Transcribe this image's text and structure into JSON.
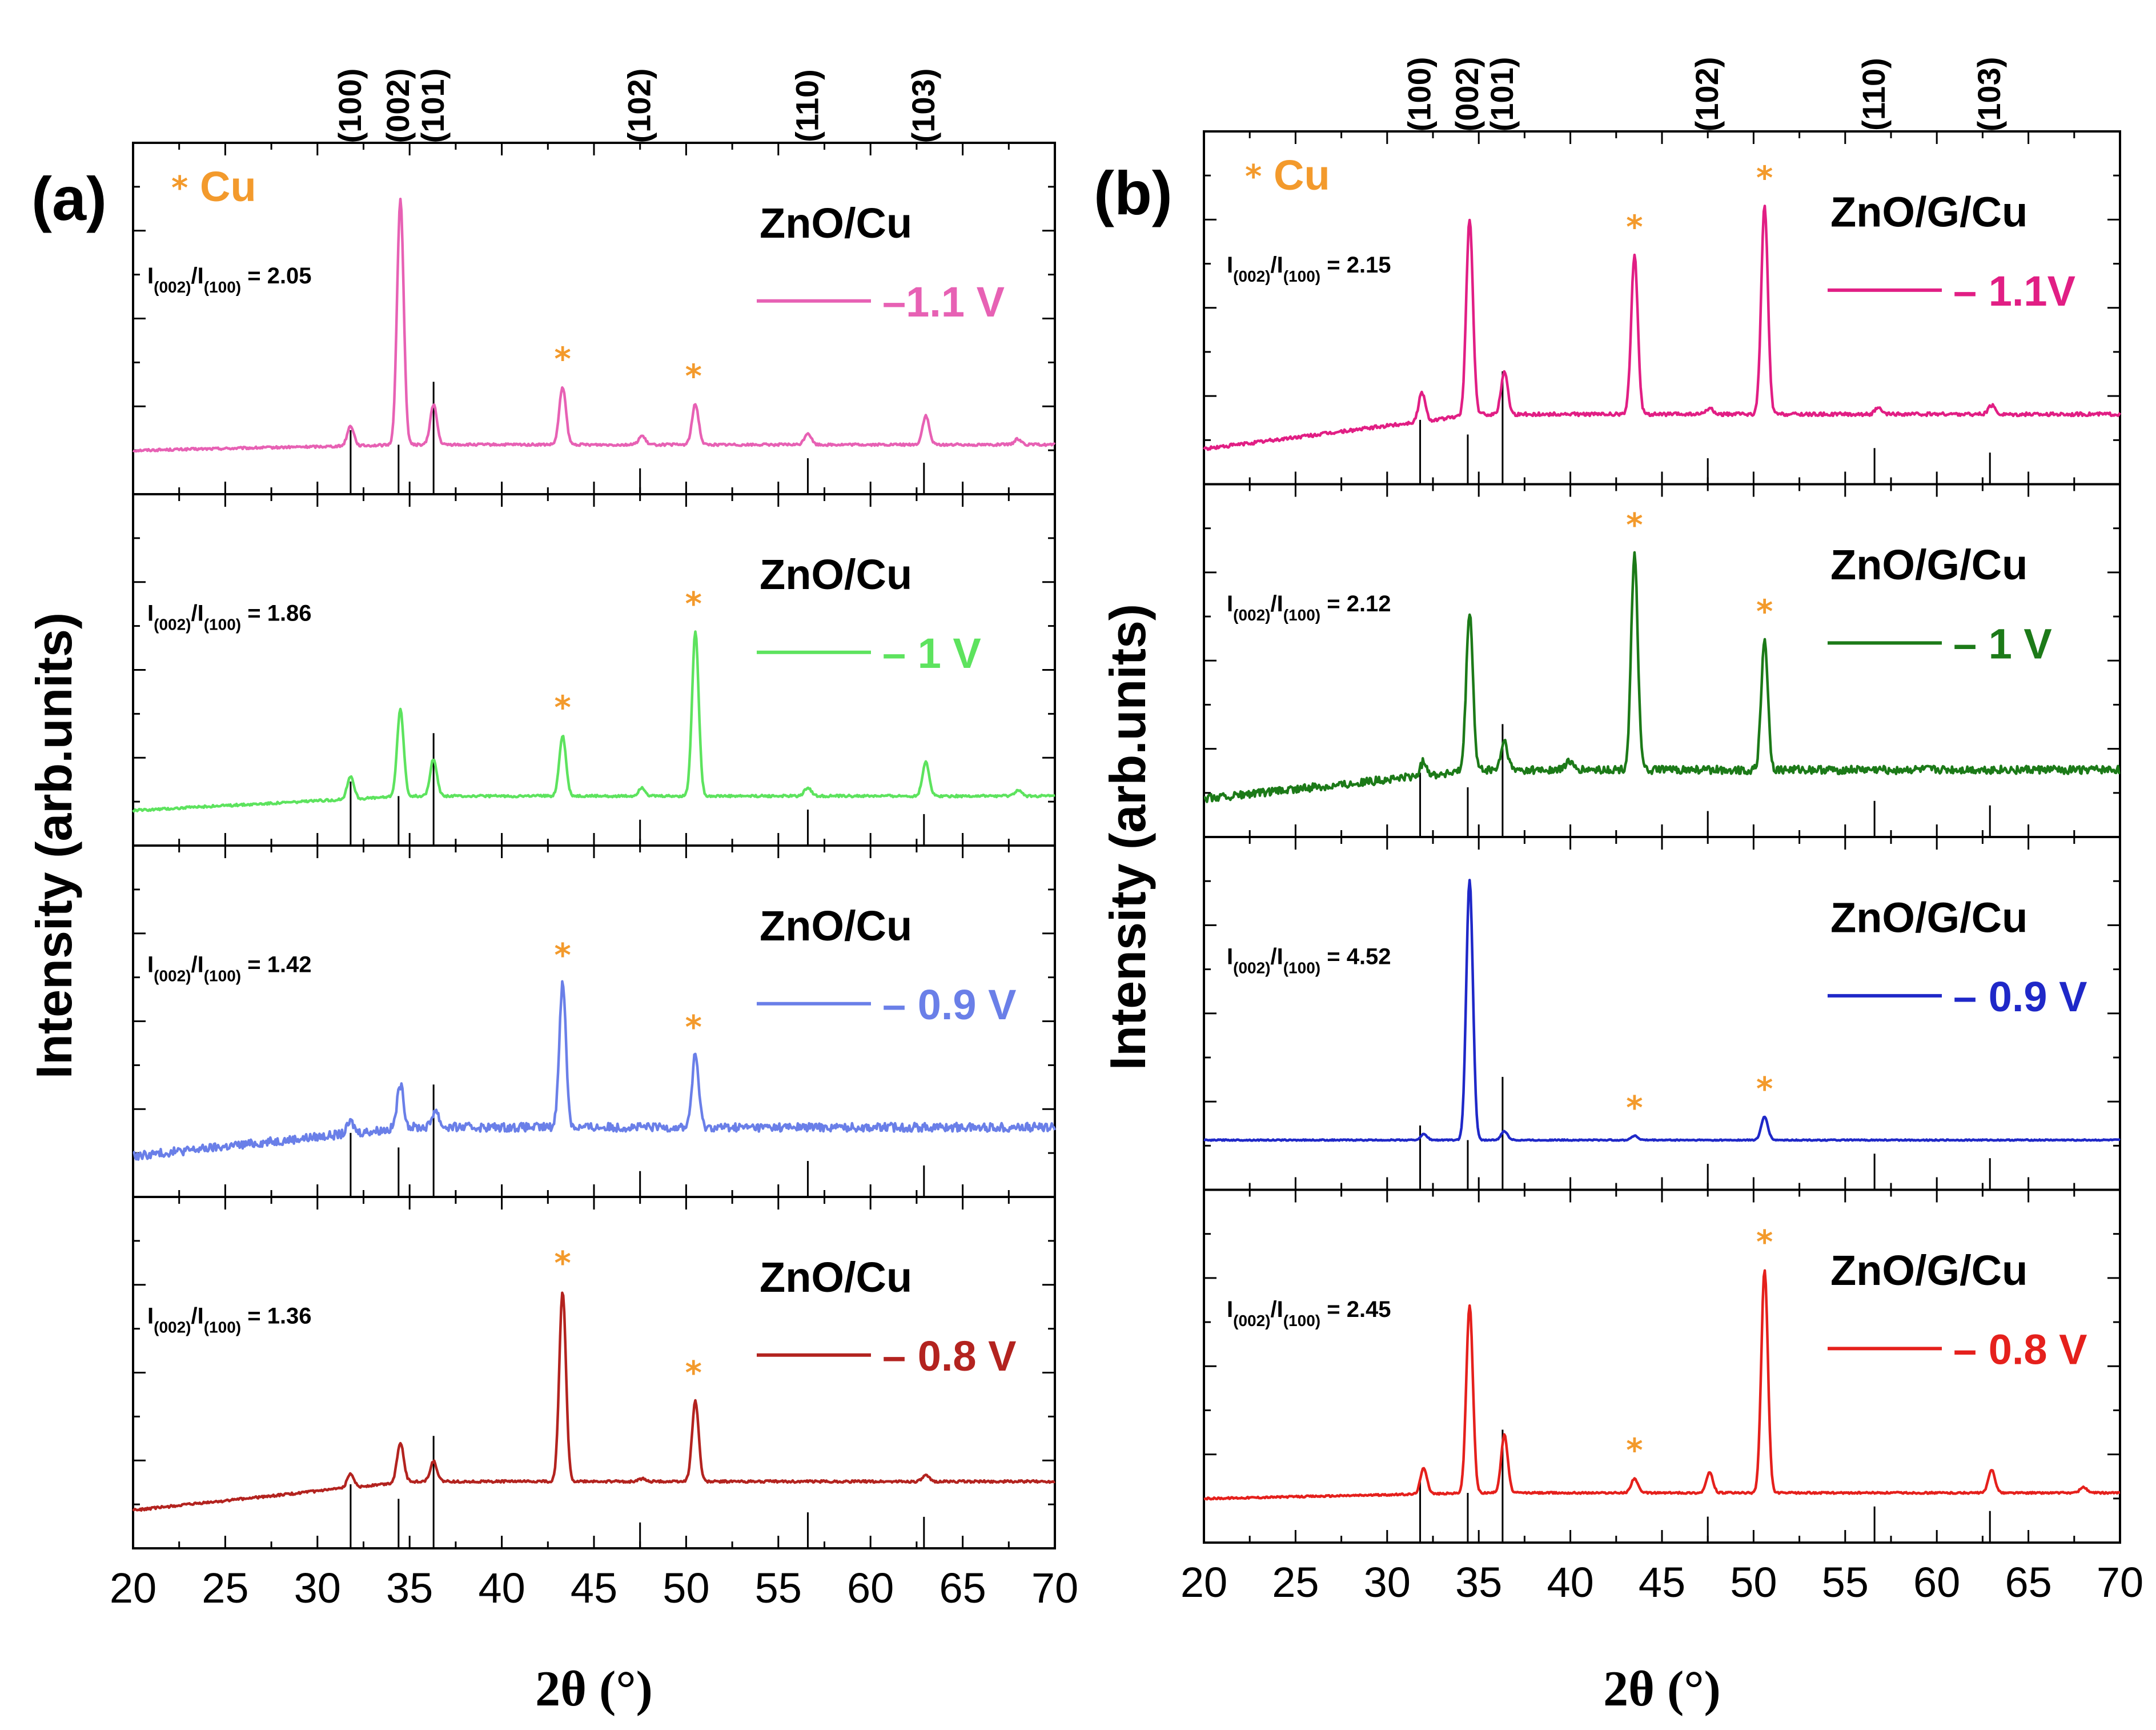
{
  "colors": {
    "cu": "#F39A2C",
    "reference_line": "#000000"
  },
  "chart_data": [
    {
      "type": "line",
      "panel": "(a)",
      "title": "",
      "xlabel": "2θ (°)",
      "ylabel": "Intensity (arb.units)",
      "xlim": [
        20,
        70
      ],
      "xticks": [
        "20",
        "25",
        "30",
        "35",
        "40",
        "45",
        "50",
        "55",
        "60",
        "65",
        "70"
      ],
      "cu_legend": "Cu",
      "cu_star": "*",
      "reflections": [
        {
          "label": "(100)",
          "x": 31.8,
          "rel": 0.57
        },
        {
          "label": "(002)",
          "x": 34.4,
          "rel": 0.44
        },
        {
          "label": "(101)",
          "x": 36.3,
          "rel": 1.0
        },
        {
          "label": "(102)",
          "x": 47.5,
          "rel": 0.23
        },
        {
          "label": "(110)",
          "x": 56.6,
          "rel": 0.32
        },
        {
          "label": "(103)",
          "x": 62.9,
          "rel": 0.28
        }
      ],
      "series": [
        {
          "sample": "ZnO/Cu",
          "voltage": "–1.1 V",
          "color": "#E761B4",
          "ratio_label": "I(002)/I(100)",
          "ratio_num": "I",
          "ratio_sub1": "(002)",
          "ratio_mid": "/I",
          "ratio_sub2": "(100)",
          "ratio_value": "= 2.05",
          "baseline": 0.03,
          "slope": 0.02,
          "noise": 0.004,
          "peaks": [
            {
              "x": 31.8,
              "h": 0.07
            },
            {
              "x": 34.5,
              "h": 0.85
            },
            {
              "x": 36.3,
              "h": 0.14
            },
            {
              "x": 43.3,
              "h": 0.2
            },
            {
              "x": 47.6,
              "h": 0.03
            },
            {
              "x": 50.5,
              "h": 0.14
            },
            {
              "x": 56.6,
              "h": 0.04
            },
            {
              "x": 63.0,
              "h": 0.1
            },
            {
              "x": 68.0,
              "h": 0.02
            }
          ],
          "cu_peaks": [
            43.3,
            50.4
          ]
        },
        {
          "sample": "ZnO/Cu",
          "voltage": "– 1 V",
          "color": "#5DE35E",
          "ratio_label": "I(002)/I(100)",
          "ratio_num": "I",
          "ratio_sub1": "(002)",
          "ratio_mid": "/I",
          "ratio_sub2": "(100)",
          "ratio_value": "= 1.86",
          "baseline": 0.0,
          "slope": 0.05,
          "noise": 0.004,
          "peaks": [
            {
              "x": 31.8,
              "h": 0.08
            },
            {
              "x": 34.5,
              "h": 0.3
            },
            {
              "x": 36.3,
              "h": 0.13
            },
            {
              "x": 43.3,
              "h": 0.21
            },
            {
              "x": 47.6,
              "h": 0.03
            },
            {
              "x": 50.5,
              "h": 0.57
            },
            {
              "x": 56.6,
              "h": 0.03
            },
            {
              "x": 63.0,
              "h": 0.12
            },
            {
              "x": 68.0,
              "h": 0.02
            }
          ],
          "cu_peaks": [
            43.3,
            50.4
          ]
        },
        {
          "sample": "ZnO/Cu",
          "voltage": "– 0.9 V",
          "color": "#6A7FE8",
          "ratio_label": "I(002)/I(100)",
          "ratio_num": "I",
          "ratio_sub1": "(002)",
          "ratio_mid": "/I",
          "ratio_sub2": "(100)",
          "ratio_value": "= 1.42",
          "baseline": 0.02,
          "slope": 0.1,
          "noise": 0.015,
          "peaks": [
            {
              "x": 31.8,
              "h": 0.04
            },
            {
              "x": 34.5,
              "h": 0.15
            },
            {
              "x": 36.4,
              "h": 0.06
            },
            {
              "x": 43.3,
              "h": 0.5
            },
            {
              "x": 50.5,
              "h": 0.25
            }
          ],
          "cu_peaks": [
            43.3,
            50.4
          ]
        },
        {
          "sample": "ZnO/Cu",
          "voltage": "– 0.8 V",
          "color": "#B3231F",
          "ratio_label": "I(002)/I(100)",
          "ratio_num": "I",
          "ratio_sub1": "(002)",
          "ratio_mid": "/I",
          "ratio_sub2": "(100)",
          "ratio_value": "= 1.36",
          "baseline": 0.01,
          "slope": 0.1,
          "noise": 0.004,
          "peaks": [
            {
              "x": 31.8,
              "h": 0.05
            },
            {
              "x": 34.5,
              "h": 0.14
            },
            {
              "x": 36.3,
              "h": 0.07
            },
            {
              "x": 43.3,
              "h": 0.66
            },
            {
              "x": 47.6,
              "h": 0.01
            },
            {
              "x": 50.5,
              "h": 0.28
            },
            {
              "x": 63.0,
              "h": 0.02
            }
          ],
          "cu_peaks": [
            43.3,
            50.4
          ]
        }
      ]
    },
    {
      "type": "line",
      "panel": "(b)",
      "title": "",
      "xlabel": "2θ (°)",
      "ylabel": "Intensity (arb.units)",
      "xlim": [
        20,
        70
      ],
      "xticks": [
        "20",
        "25",
        "30",
        "35",
        "40",
        "45",
        "50",
        "55",
        "60",
        "65",
        "70"
      ],
      "cu_legend": "Cu",
      "cu_star": "*",
      "reflections": [
        {
          "label": "(100)",
          "x": 31.8,
          "rel": 0.57
        },
        {
          "label": "(002)",
          "x": 34.4,
          "rel": 0.44
        },
        {
          "label": "(101)",
          "x": 36.3,
          "rel": 1.0
        },
        {
          "label": "(102)",
          "x": 47.5,
          "rel": 0.23
        },
        {
          "label": "(110)",
          "x": 56.6,
          "rel": 0.32
        },
        {
          "label": "(103)",
          "x": 62.9,
          "rel": 0.28
        }
      ],
      "series": [
        {
          "sample": "ZnO/G/Cu",
          "voltage": "– 1.1V",
          "color": "#E11E84",
          "ratio_label": "I(002)/I(100)",
          "ratio_num": "I",
          "ratio_sub1": "(002)",
          "ratio_mid": "/I",
          "ratio_sub2": "(100)",
          "ratio_value": "= 2.15",
          "baseline": 0.0,
          "slope": 0.12,
          "noise": 0.006,
          "peaks": [
            {
              "x": 31.9,
              "h": 0.1
            },
            {
              "x": 34.5,
              "h": 0.68
            },
            {
              "x": 36.4,
              "h": 0.15
            },
            {
              "x": 43.5,
              "h": 0.55
            },
            {
              "x": 47.6,
              "h": 0.02
            },
            {
              "x": 50.6,
              "h": 0.72
            },
            {
              "x": 56.8,
              "h": 0.02
            },
            {
              "x": 63.0,
              "h": 0.03
            }
          ],
          "cu_peaks": [
            43.5,
            50.6
          ]
        },
        {
          "sample": "ZnO/G/Cu",
          "voltage": "– 1 V",
          "color": "#1C7A18",
          "ratio_label": "I(002)/I(100)",
          "ratio_num": "I",
          "ratio_sub1": "(002)",
          "ratio_mid": "/I",
          "ratio_sub2": "(100)",
          "ratio_value": "= 2.12",
          "baseline": 0.01,
          "slope": 0.1,
          "noise": 0.014,
          "peaks": [
            {
              "x": 32.0,
              "h": 0.05
            },
            {
              "x": 34.5,
              "h": 0.55
            },
            {
              "x": 36.4,
              "h": 0.1
            },
            {
              "x": 39.9,
              "h": 0.03
            },
            {
              "x": 43.5,
              "h": 0.75
            },
            {
              "x": 50.6,
              "h": 0.45
            }
          ],
          "cu_peaks": [
            43.5,
            50.6
          ]
        },
        {
          "sample": "ZnO/G/Cu",
          "voltage": "– 0.9 V",
          "color": "#1F28C8",
          "ratio_label": "I(002)/I(100)",
          "ratio_num": "I",
          "ratio_sub1": "(002)",
          "ratio_mid": "/I",
          "ratio_sub2": "(100)",
          "ratio_value": "= 4.52",
          "baseline": 0.05,
          "slope": 0.0,
          "noise": 0.002,
          "peaks": [
            {
              "x": 32.0,
              "h": 0.02
            },
            {
              "x": 34.5,
              "h": 0.9
            },
            {
              "x": 36.4,
              "h": 0.03
            },
            {
              "x": 43.5,
              "h": 0.015
            },
            {
              "x": 50.6,
              "h": 0.08
            }
          ],
          "cu_peaks": [
            43.5,
            50.6
          ]
        },
        {
          "sample": "ZnO/G/Cu",
          "voltage": "– 0.8 V",
          "color": "#E5201C",
          "ratio_label": "I(002)/I(100)",
          "ratio_num": "I",
          "ratio_sub1": "(002)",
          "ratio_mid": "/I",
          "ratio_sub2": "(100)",
          "ratio_value": "= 2.45",
          "baseline": 0.03,
          "slope": 0.02,
          "noise": 0.003,
          "peaks": [
            {
              "x": 32.0,
              "h": 0.09
            },
            {
              "x": 34.5,
              "h": 0.65
            },
            {
              "x": 36.4,
              "h": 0.2
            },
            {
              "x": 43.5,
              "h": 0.05
            },
            {
              "x": 47.6,
              "h": 0.07
            },
            {
              "x": 50.6,
              "h": 0.77
            },
            {
              "x": 63.0,
              "h": 0.08
            },
            {
              "x": 68.0,
              "h": 0.02
            }
          ],
          "cu_peaks": [
            43.5,
            50.6
          ]
        }
      ]
    }
  ]
}
